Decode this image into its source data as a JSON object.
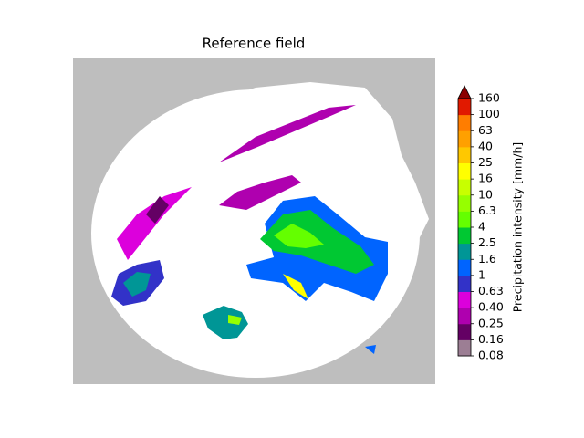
{
  "chart_data": {
    "type": "colormap",
    "title": "Reference field",
    "colorbar": {
      "label": "Precipitation intensity [mm/h]",
      "ticks": [
        0.08,
        0.16,
        0.25,
        {
          "value": 0.4,
          "label": "0.40"
        },
        0.63,
        1,
        1.6,
        2.5,
        4,
        6.3,
        10,
        16,
        25,
        40,
        63,
        100,
        160
      ],
      "colors": [
        "#9c7e94",
        "#640064",
        "#af00af",
        "#dc00dc",
        "#3232c8",
        "#0064ff",
        "#009696",
        "#00c832",
        "#64ff00",
        "#96ff00",
        "#c8ff00",
        "#ffff00",
        "#ffc800",
        "#ffa000",
        "#ff7d00",
        "#e11900"
      ],
      "extend_color": "#8b0000"
    }
  }
}
